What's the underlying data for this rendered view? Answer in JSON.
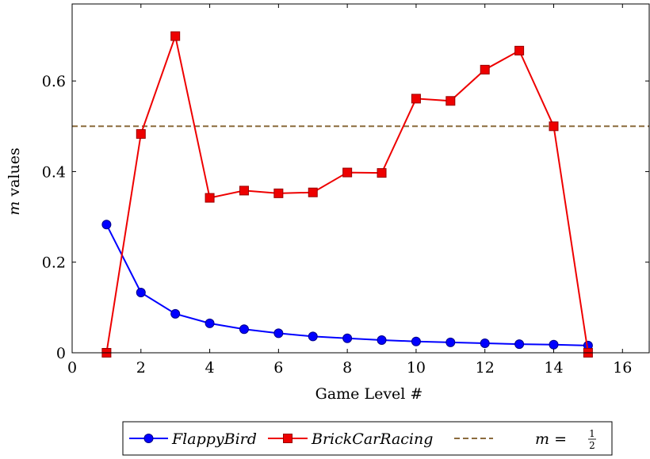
{
  "chart_data": {
    "type": "line",
    "xlabel": "Game Level #",
    "ylabel_italic": "m",
    "ylabel_rest": " values",
    "xlim": [
      0,
      16.8
    ],
    "ylim": [
      0,
      0.77
    ],
    "xticks": [
      0,
      2,
      4,
      6,
      8,
      10,
      12,
      14,
      16
    ],
    "yticks": [
      0,
      0.2,
      0.4,
      0.6
    ],
    "ytick_labels": [
      "0",
      "0.2",
      "0.4",
      "0.6"
    ],
    "grid": false,
    "legend_position": "bottom-center",
    "series": [
      {
        "name": "FlappyBird",
        "color": "#0000ff",
        "marker": "circle",
        "x": [
          1,
          2,
          3,
          4,
          5,
          6,
          7,
          8,
          9,
          10,
          11,
          12,
          13,
          14,
          15
        ],
        "y": [
          0.283,
          0.133,
          0.086,
          0.065,
          0.052,
          0.043,
          0.036,
          0.032,
          0.028,
          0.025,
          0.023,
          0.021,
          0.019,
          0.018,
          0.016
        ]
      },
      {
        "name": "BrickCarRacing",
        "color": "#ee0000",
        "marker": "square",
        "x": [
          1,
          2,
          3,
          4,
          5,
          6,
          7,
          8,
          9,
          10,
          11,
          12,
          13,
          14,
          15
        ],
        "y": [
          0,
          0.483,
          0.699,
          0.342,
          0.358,
          0.352,
          0.354,
          0.398,
          0.397,
          0.561,
          0.556,
          0.625,
          0.667,
          0.5,
          0
        ]
      }
    ],
    "reference_line": {
      "label_prefix": "m = ",
      "label_num": "1",
      "label_den": "2",
      "y": 0.5,
      "color": "#8b6b3d",
      "style": "dashed"
    }
  }
}
